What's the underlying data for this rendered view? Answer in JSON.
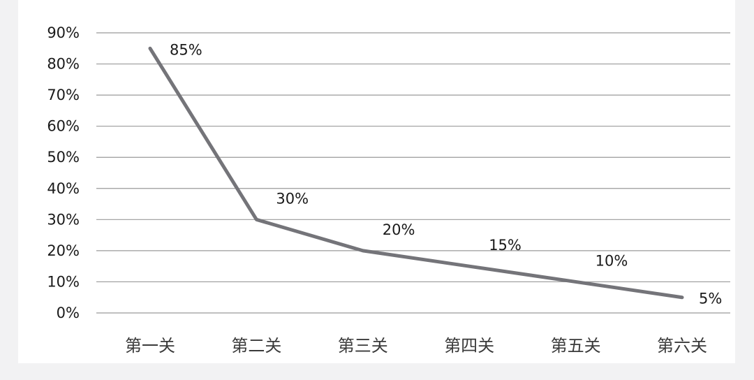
{
  "chart_data": {
    "type": "line",
    "categories": [
      "第一关",
      "第二关",
      "第三关",
      "第四关",
      "第五关",
      "第六关"
    ],
    "series": [
      {
        "values": [
          85,
          30,
          20,
          15,
          10,
          5
        ],
        "labels": [
          "85%",
          "30%",
          "20%",
          "15%",
          "10%",
          "5%"
        ],
        "color": "#747479"
      }
    ],
    "yticks": [
      "0%",
      "10%",
      "20%",
      "30%",
      "40%",
      "50%",
      "60%",
      "70%",
      "80%",
      "90%"
    ],
    "ylim": [
      0,
      90
    ],
    "grid": true,
    "legend": "none",
    "gridColor": "#9a9a9a"
  }
}
